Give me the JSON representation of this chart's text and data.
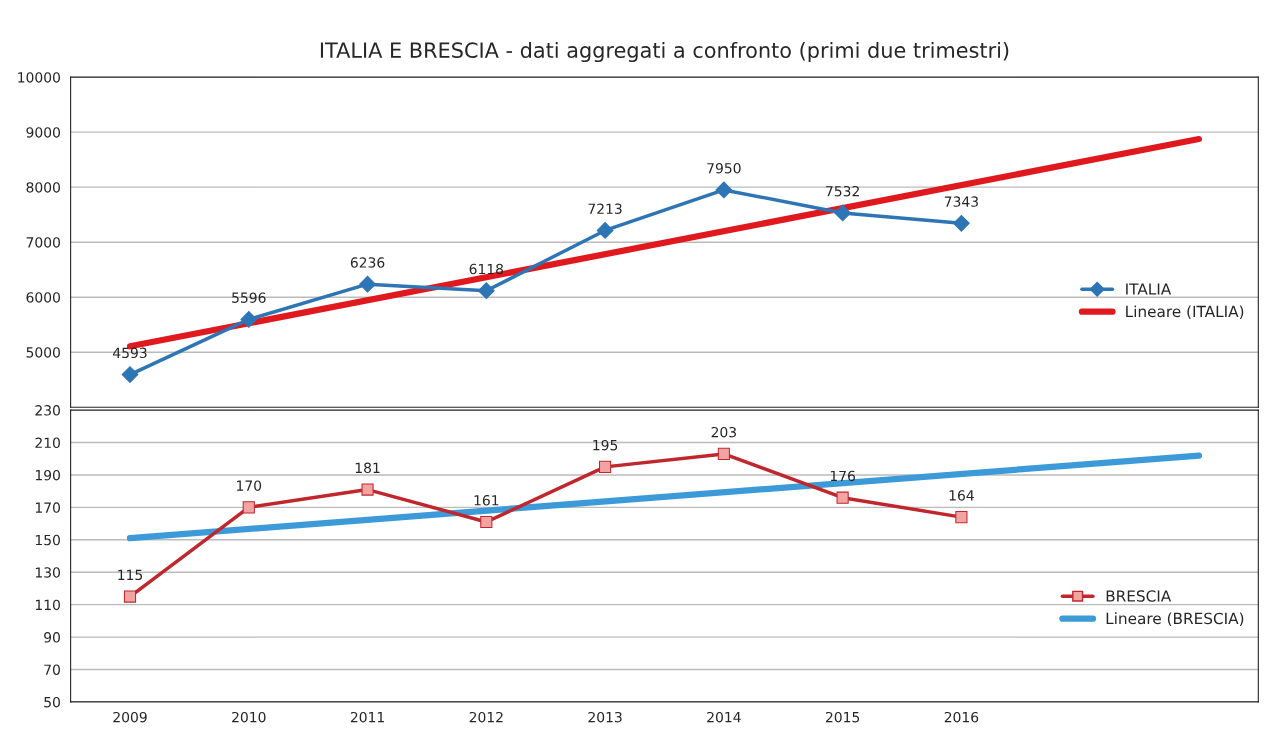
{
  "chart_data": [
    {
      "type": "line",
      "title": "ITALIA E BRESCIA - dati aggregati a confronto (primi due trimestri)",
      "categories": [
        "2009",
        "2010",
        "2011",
        "2012",
        "2013",
        "2014",
        "2015",
        "2016",
        null,
        null
      ],
      "series": [
        {
          "name": "ITALIA",
          "color": "#2e75b6",
          "marker": "diamond",
          "data_labels": true,
          "values": [
            4593,
            5596,
            6236,
            6118,
            7213,
            7950,
            7532,
            7343,
            null,
            null
          ]
        },
        {
          "name": "Lineare (ITALIA)",
          "color": "#e0191e",
          "marker": "none",
          "values": [
            5107,
            null,
            null,
            null,
            null,
            null,
            null,
            null,
            null,
            8875
          ]
        }
      ],
      "ylim": [
        4000,
        10000
      ],
      "yticks": [
        5000,
        6000,
        7000,
        8000,
        9000,
        10000
      ],
      "grid": "y",
      "legend": "right",
      "tick_labels": "y"
    },
    {
      "type": "line",
      "categories": [
        "2009",
        "2010",
        "2011",
        "2012",
        "2013",
        "2014",
        "2015",
        "2016",
        null,
        null
      ],
      "series": [
        {
          "name": "BRESCIA",
          "color": "#c0272d",
          "marker": "square",
          "data_labels": true,
          "values": [
            115,
            170,
            181,
            161,
            195,
            203,
            176,
            164,
            null,
            null
          ]
        },
        {
          "name": "Lineare (BRESCIA)",
          "color": "#3d9ad8",
          "marker": "none",
          "values": [
            151,
            null,
            null,
            null,
            null,
            null,
            null,
            null,
            null,
            202
          ]
        }
      ],
      "ylim": [
        50,
        230
      ],
      "yticks": [
        50,
        70,
        90,
        110,
        130,
        150,
        170,
        190,
        210,
        230
      ],
      "grid": "y",
      "legend": "right"
    }
  ]
}
